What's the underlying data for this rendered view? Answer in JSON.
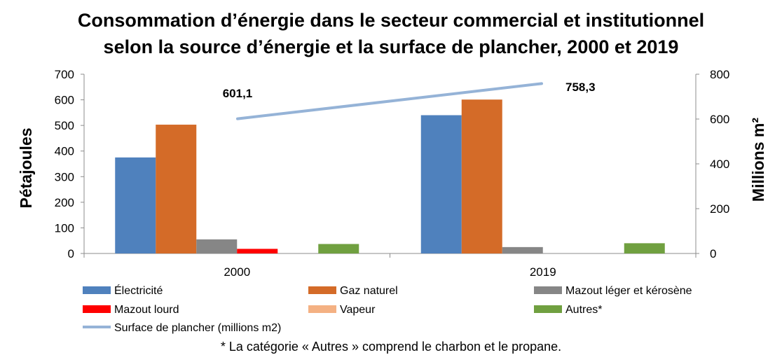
{
  "title_line1": "Consommation d’énergie dans le secteur commercial et institutionnel",
  "title_line2": "selon la source d’énergie et la surface de plancher, 2000 et 2019",
  "footnote": "* La catégorie « Autres » comprend le charbon et le propane.",
  "chart_data": {
    "type": "bar",
    "title": "Consommation d’énergie dans le secteur commercial et institutionnel selon la source d’énergie et la surface de plancher, 2000 et 2019",
    "categories": [
      "2000",
      "2019"
    ],
    "ylabel": "Pétajoules",
    "y2label": "Millions m²",
    "ylim": [
      0,
      700
    ],
    "y2lim": [
      0,
      800
    ],
    "yticks": [
      0,
      100,
      200,
      300,
      400,
      500,
      600,
      700
    ],
    "y2ticks": [
      0,
      200,
      400,
      600,
      800
    ],
    "gridlines": false,
    "legend_position": "bottom",
    "series": [
      {
        "name": "Électricité",
        "color": "#4f81bd",
        "values": [
          375,
          540
        ]
      },
      {
        "name": "Gaz naturel",
        "color": "#d46b28",
        "values": [
          503,
          601
        ]
      },
      {
        "name": "Mazout léger et kérosène",
        "color": "#868686",
        "values": [
          55,
          25
        ]
      },
      {
        "name": "Mazout lourd",
        "color": "#ff0000",
        "values": [
          18,
          0
        ]
      },
      {
        "name": "Vapeur",
        "color": "#f4b183",
        "values": [
          0,
          0
        ]
      },
      {
        "name": "Autres*",
        "color": "#70a040",
        "values": [
          37,
          40
        ]
      }
    ],
    "line_series": {
      "name": "Surface de plancher (millions m2)",
      "color": "#95b3d7",
      "axis": "right",
      "values": [
        601.1,
        758.3
      ],
      "labels": [
        "601,1",
        "758,3"
      ]
    }
  }
}
